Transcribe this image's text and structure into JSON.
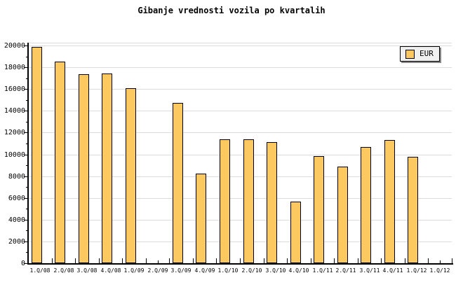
{
  "title": "Gibanje vrednosti vozila po kvartalih",
  "legend": {
    "label": "EUR"
  },
  "colors": {
    "bar_fill": "#FCC860",
    "bar_border": "#000000",
    "grid": "#DCDCDC",
    "axis": "#000000",
    "background": "#FFFFFF",
    "legend_bg": "#F0F0F0",
    "legend_shadow": "#888888"
  },
  "chart_data": {
    "type": "bar",
    "title": "Gibanje vrednosti vozila po kvartalih",
    "categories": [
      "1.Q/08",
      "2.Q/08",
      "3.Q/08",
      "4.Q/08",
      "1.Q/09",
      "2.Q/09",
      "3.Q/09",
      "4.Q/09",
      "1.Q/10",
      "2.Q/10",
      "3.Q/10",
      "4.Q/10",
      "1.Q/11",
      "2.Q/11",
      "3.Q/11",
      "4.Q/11",
      "1.Q/12",
      "1.Q/12"
    ],
    "series": [
      {
        "name": "EUR",
        "values": [
          19900,
          18500,
          17350,
          17450,
          16100,
          null,
          14750,
          8200,
          11400,
          11400,
          11150,
          5650,
          9850,
          8900,
          10700,
          11350,
          9800,
          null
        ]
      }
    ],
    "xlabel": "",
    "ylabel": "",
    "ylim": [
      0,
      20000
    ],
    "ytick_step": 2000,
    "y_minor_step": 1000,
    "grid": "horizontal",
    "legend_position": "top-right",
    "legend_entries": [
      "EUR"
    ]
  }
}
